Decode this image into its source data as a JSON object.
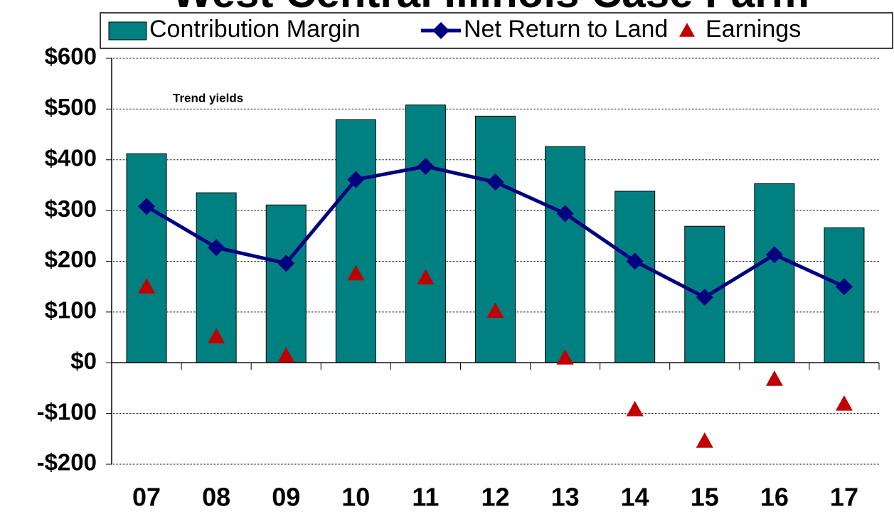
{
  "chart_data": {
    "type": "bar_line",
    "title": "West Central Illinois Case Farm",
    "annotation": "Trend yields",
    "categories": [
      "07",
      "08",
      "09",
      "10",
      "11",
      "12",
      "13",
      "14",
      "15",
      "16",
      "17"
    ],
    "series": [
      {
        "name": "Contribution Margin",
        "type": "bar",
        "color": "#008080",
        "values": [
          412,
          335,
          311,
          479,
          508,
          486,
          426,
          338,
          269,
          353,
          266
        ]
      },
      {
        "name": "Net Return to Land",
        "type": "line",
        "color": "#000080",
        "values": [
          308,
          227,
          196,
          361,
          387,
          356,
          294,
          200,
          129,
          213,
          150
        ]
      },
      {
        "name": "Earnings",
        "type": "scatter",
        "color": "#c00000",
        "values": [
          150,
          52,
          14,
          176,
          168,
          102,
          10,
          -92,
          -154,
          -32,
          -81
        ]
      }
    ],
    "ylim": [
      -200,
      600
    ],
    "yticks": [
      {
        "value": -200,
        "label": "-$200"
      },
      {
        "value": -100,
        "label": "-$100"
      },
      {
        "value": 0,
        "label": "$0"
      },
      {
        "value": 100,
        "label": "$100"
      },
      {
        "value": 200,
        "label": "$200"
      },
      {
        "value": 300,
        "label": "$300"
      },
      {
        "value": 400,
        "label": "$400"
      },
      {
        "value": 500,
        "label": "$500"
      },
      {
        "value": 600,
        "label": "$600"
      }
    ],
    "grid": true
  }
}
